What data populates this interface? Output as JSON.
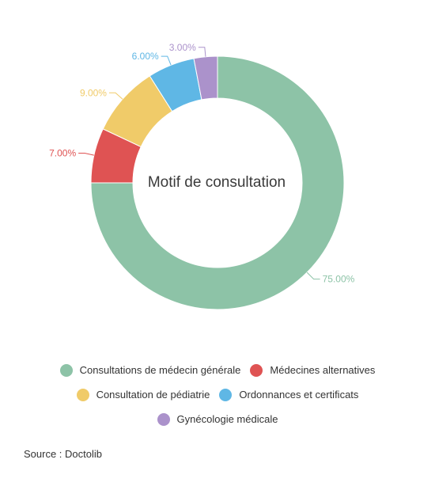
{
  "chart_data": {
    "type": "pie",
    "title": "Motif de consultation",
    "donut": true,
    "slices": [
      {
        "name": "Consultations de médecin générale",
        "value": 75,
        "label": "75.00%",
        "color": "#8dc3a7"
      },
      {
        "name": "Médecines alternatives",
        "value": 7,
        "label": "7.00%",
        "color": "#df5353"
      },
      {
        "name": "Consultation de pédiatrie",
        "value": 9,
        "label": "9.00%",
        "color": "#f0cb69"
      },
      {
        "name": "Ordonnances et certificats",
        "value": 6,
        "label": "6.00%",
        "color": "#5fb7e5"
      },
      {
        "name": "Gynécologie médicale",
        "value": 3,
        "label": "3.00%",
        "color": "#ab92cb"
      }
    ],
    "legend_position": "bottom"
  },
  "source": "Source : Doctolib"
}
